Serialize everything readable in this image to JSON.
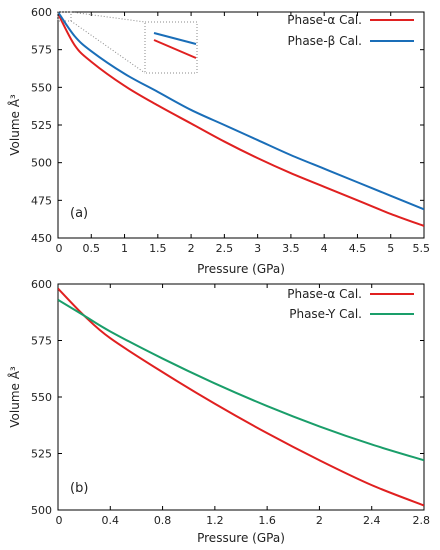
{
  "chart_data": [
    {
      "panel": "(a)",
      "type": "line",
      "xlabel": "Pressure (GPa)",
      "ylabel": "Volume Å³",
      "xlim": [
        0,
        5.5
      ],
      "ylim": [
        450,
        600
      ],
      "xticks": [
        "0",
        "0.5",
        "1",
        "1.5",
        "2",
        "2.5",
        "3",
        "3.5",
        "4",
        "4.5",
        "5",
        "5.5"
      ],
      "xtick_values": [
        0,
        0.5,
        1,
        1.5,
        2,
        2.5,
        3,
        3.5,
        4,
        4.5,
        5,
        5.5
      ],
      "yticks": [
        "450",
        "475",
        "500",
        "525",
        "550",
        "575",
        "600"
      ],
      "ytick_values": [
        450,
        475,
        500,
        525,
        550,
        575,
        600
      ],
      "grid": false,
      "legend": "top-right",
      "inset": "zoom of the curves near 0 GPa",
      "series": [
        {
          "name": "Phase-α Cal.",
          "color": "#e02020",
          "x": [
            0,
            0.25,
            0.5,
            1,
            1.5,
            2,
            2.5,
            3,
            3.5,
            4,
            4.5,
            5,
            5.5
          ],
          "y": [
            599,
            578,
            567,
            551,
            538,
            526,
            514,
            503,
            493,
            484,
            475,
            466,
            458
          ]
        },
        {
          "name": "Phase-β Cal.",
          "color": "#1a6eb8",
          "x": [
            0,
            0.25,
            0.5,
            1,
            1.5,
            2,
            2.5,
            3,
            3.5,
            4,
            4.5,
            5,
            5.5
          ],
          "y": [
            600,
            584,
            574,
            559,
            547,
            535,
            525,
            515,
            505,
            496,
            487,
            478,
            469
          ]
        }
      ]
    },
    {
      "panel": "(b)",
      "type": "line",
      "xlabel": "Pressure (GPa)",
      "ylabel": "Volume Å³",
      "xlim": [
        0,
        2.8
      ],
      "ylim": [
        500,
        600
      ],
      "xticks": [
        "0",
        "0.4",
        "0.8",
        "1.2",
        "1.6",
        "2",
        "2.4",
        "2.8"
      ],
      "xtick_values": [
        0,
        0.4,
        0.8,
        1.2,
        1.6,
        2,
        2.4,
        2.8
      ],
      "yticks": [
        "500",
        "525",
        "550",
        "575",
        "600"
      ],
      "ytick_values": [
        500,
        525,
        550,
        575,
        600
      ],
      "grid": false,
      "legend": "top-right",
      "series": [
        {
          "name": "Phase-α Cal.",
          "color": "#e02020",
          "x": [
            0,
            0.2,
            0.4,
            0.8,
            1.2,
            1.6,
            2.0,
            2.4,
            2.8
          ],
          "y": [
            598,
            586,
            576,
            561,
            547,
            534,
            522,
            511,
            502
          ]
        },
        {
          "name": "Phase-Y Cal.",
          "color": "#1a9e6a",
          "x": [
            0,
            0.2,
            0.4,
            0.8,
            1.2,
            1.6,
            2.0,
            2.4,
            2.8
          ],
          "y": [
            593,
            586,
            579,
            567,
            556,
            546,
            537,
            529,
            522
          ]
        }
      ]
    }
  ]
}
